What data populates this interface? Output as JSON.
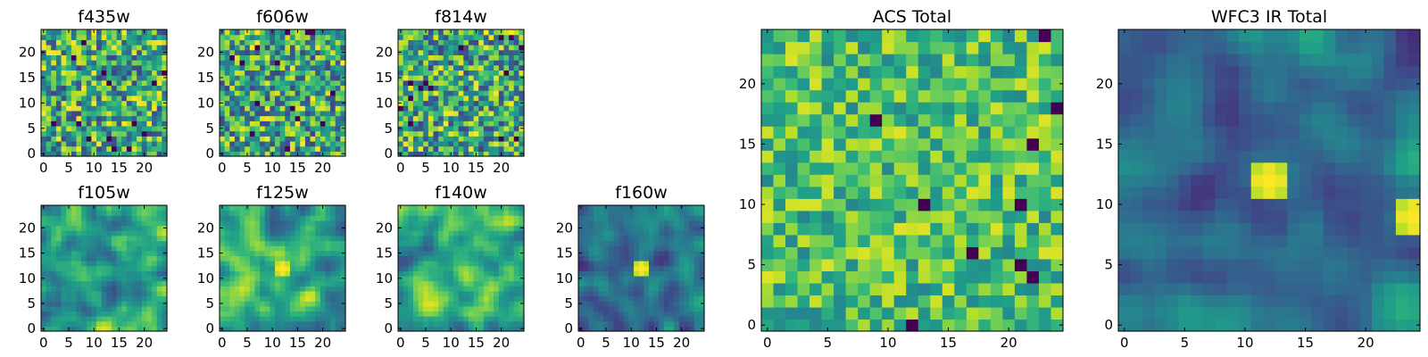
{
  "chart_data": [
    {
      "type": "heatmap",
      "title": "f435w",
      "grid": false,
      "colormap": "viridis",
      "x_ticks": [
        "0",
        "5",
        "10",
        "15",
        "20"
      ],
      "y_ticks": [
        "0",
        "5",
        "10",
        "15",
        "20"
      ],
      "xlim": [
        0,
        24
      ],
      "ylim": [
        0,
        24
      ],
      "size": 25,
      "texture": "noise",
      "seed": 11,
      "peaks": []
    },
    {
      "type": "heatmap",
      "title": "f606w",
      "grid": false,
      "colormap": "viridis",
      "x_ticks": [
        "0",
        "5",
        "10",
        "15",
        "20"
      ],
      "y_ticks": [
        "0",
        "5",
        "10",
        "15",
        "20"
      ],
      "xlim": [
        0,
        24
      ],
      "ylim": [
        0,
        24
      ],
      "size": 25,
      "texture": "noise",
      "seed": 23,
      "peaks": []
    },
    {
      "type": "heatmap",
      "title": "f814w",
      "grid": false,
      "colormap": "viridis",
      "x_ticks": [
        "0",
        "5",
        "10",
        "15",
        "20"
      ],
      "y_ticks": [
        "0",
        "5",
        "10",
        "15",
        "20"
      ],
      "xlim": [
        0,
        24
      ],
      "ylim": [
        0,
        24
      ],
      "size": 25,
      "texture": "noise",
      "seed": 37,
      "peaks": []
    },
    {
      "type": "heatmap",
      "title": "f105w",
      "grid": false,
      "colormap": "viridis",
      "x_ticks": [
        "0",
        "5",
        "10",
        "15",
        "20"
      ],
      "y_ticks": [
        "0",
        "5",
        "10",
        "15",
        "20"
      ],
      "xlim": [
        0,
        24
      ],
      "ylim": [
        0,
        24
      ],
      "size": 25,
      "texture": "smooth",
      "seed": 41,
      "peaks": []
    },
    {
      "type": "heatmap",
      "title": "f125w",
      "grid": false,
      "colormap": "viridis",
      "x_ticks": [
        "0",
        "5",
        "10",
        "15",
        "20"
      ],
      "y_ticks": [
        "0",
        "5",
        "10",
        "15",
        "20"
      ],
      "xlim": [
        0,
        24
      ],
      "ylim": [
        0,
        24
      ],
      "size": 25,
      "texture": "smooth",
      "seed": 53,
      "peaks": [
        [
          12,
          12
        ]
      ]
    },
    {
      "type": "heatmap",
      "title": "f140w",
      "grid": false,
      "colormap": "viridis",
      "x_ticks": [
        "0",
        "5",
        "10",
        "15",
        "20"
      ],
      "y_ticks": [
        "0",
        "5",
        "10",
        "15",
        "20"
      ],
      "xlim": [
        0,
        24
      ],
      "ylim": [
        0,
        24
      ],
      "size": 25,
      "texture": "smooth",
      "seed": 67,
      "peaks": []
    },
    {
      "type": "heatmap",
      "title": "f160w",
      "grid": false,
      "colormap": "viridis",
      "x_ticks": [
        "0",
        "5",
        "10",
        "15",
        "20"
      ],
      "y_ticks": [
        "0",
        "5",
        "10",
        "15",
        "20"
      ],
      "xlim": [
        0,
        24
      ],
      "ylim": [
        0,
        24
      ],
      "size": 25,
      "texture": "smooth-dark",
      "seed": 79,
      "peaks": [
        [
          12,
          12
        ]
      ]
    },
    {
      "type": "heatmap",
      "title": "ACS Total",
      "grid": false,
      "colormap": "viridis",
      "x_ticks": [
        "0",
        "5",
        "10",
        "15",
        "20"
      ],
      "y_ticks": [
        "0",
        "5",
        "10",
        "15",
        "20"
      ],
      "xlim": [
        0,
        24
      ],
      "ylim": [
        0,
        24
      ],
      "size": 25,
      "texture": "bright-noise",
      "seed": 97,
      "peaks": []
    },
    {
      "type": "heatmap",
      "title": "WFC3 IR Total",
      "grid": false,
      "colormap": "viridis",
      "x_ticks": [
        "0",
        "5",
        "10",
        "15",
        "20"
      ],
      "y_ticks": [
        "0",
        "5",
        "10",
        "15",
        "20"
      ],
      "xlim": [
        0,
        24
      ],
      "ylim": [
        0,
        24
      ],
      "size": 25,
      "texture": "smooth-dark",
      "seed": 103,
      "peaks": [
        [
          12,
          12
        ],
        [
          24,
          9
        ]
      ]
    }
  ]
}
